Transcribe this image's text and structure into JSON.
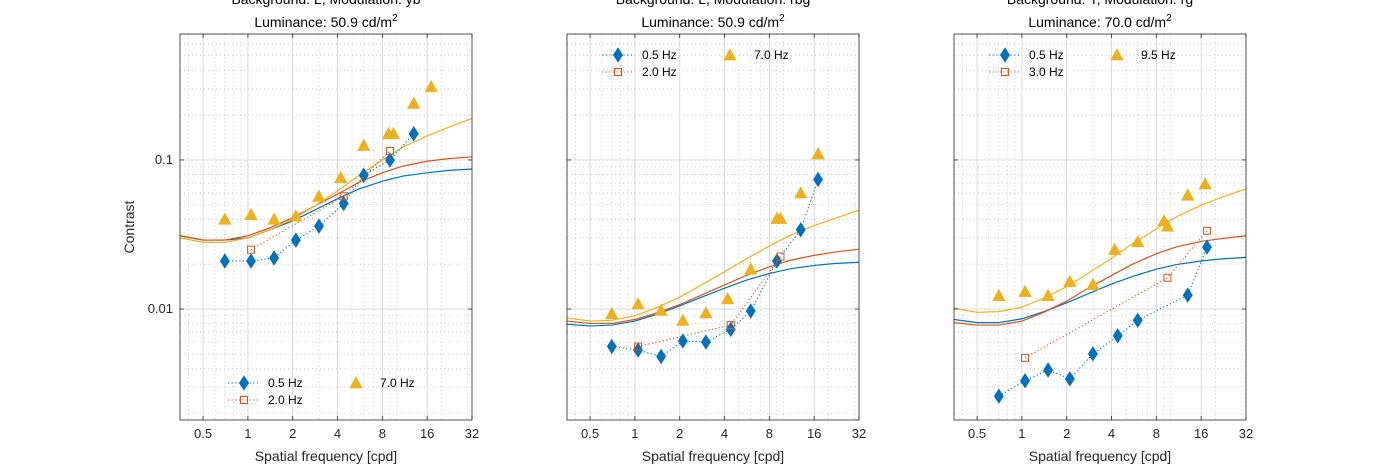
{
  "colors": {
    "series_0": "#0072BD",
    "series_1": "#D95319",
    "series_2": "#EDB120",
    "grid": "#b8b8b8",
    "axis": "#262626"
  },
  "chart_data": [
    {
      "type": "scatter",
      "title_line1": "Background: L, Modulation: yb",
      "title_line2": "Luminance: 50.9 cd/m",
      "title_superscript": "2",
      "xlabel": "Spatial frequency [cpd]",
      "ylabel": "Contrast",
      "xscale": "log",
      "yscale": "log",
      "xlim": [
        0.35,
        32
      ],
      "ylim": [
        0.0018,
        0.7
      ],
      "xticks": [
        0.5,
        1,
        2,
        4,
        8,
        16,
        32
      ],
      "xtick_labels": [
        "0.5",
        "1",
        "2",
        "4",
        "8",
        "16",
        "32"
      ],
      "yticks": [
        0.01,
        0.1
      ],
      "ytick_labels": [
        "0.01",
        "0.1"
      ],
      "grid": true,
      "legend_position": "bottom-center",
      "series": [
        {
          "name": "0.5 Hz",
          "marker": "diamond",
          "line": "dotted",
          "x": [
            0.7,
            1.05,
            1.5,
            2.1,
            3.0,
            4.4,
            6.0,
            9.0,
            13.0
          ],
          "y": [
            0.021,
            0.021,
            0.022,
            0.029,
            0.036,
            0.051,
            0.079,
            0.1,
            0.15
          ]
        },
        {
          "name": "2.0 Hz",
          "marker": "square",
          "line": "dotted",
          "x": [
            1.05,
            4.4,
            9.0
          ],
          "y": [
            0.025,
            0.057,
            0.115
          ]
        },
        {
          "name": "7.0 Hz",
          "marker": "triangle",
          "line": "none",
          "x": [
            0.7,
            1.05,
            1.5,
            2.1,
            3.0,
            4.2,
            6.0,
            8.8,
            9.5,
            13.0,
            17.0
          ],
          "y": [
            0.04,
            0.043,
            0.04,
            0.042,
            0.057,
            0.076,
            0.125,
            0.15,
            0.15,
            0.24,
            0.31
          ]
        }
      ],
      "fits": [
        {
          "x": [
            0.35,
            0.5,
            0.7,
            1,
            1.4,
            2,
            2.8,
            4,
            5.6,
            8,
            11,
            16,
            22,
            32
          ],
          "y": [
            0.031,
            0.029,
            0.029,
            0.03,
            0.034,
            0.039,
            0.046,
            0.055,
            0.064,
            0.072,
            0.078,
            0.082,
            0.085,
            0.087
          ]
        },
        {
          "x": [
            0.35,
            0.5,
            0.7,
            1,
            1.4,
            2,
            2.8,
            4,
            5.6,
            8,
            11,
            16,
            22,
            32
          ],
          "y": [
            0.031,
            0.029,
            0.029,
            0.031,
            0.035,
            0.041,
            0.049,
            0.059,
            0.071,
            0.082,
            0.091,
            0.098,
            0.102,
            0.105
          ]
        },
        {
          "x": [
            0.35,
            0.5,
            0.7,
            1,
            1.4,
            2,
            2.8,
            4,
            5.6,
            8,
            11,
            16,
            22,
            32
          ],
          "y": [
            0.03,
            0.028,
            0.028,
            0.03,
            0.034,
            0.04,
            0.049,
            0.062,
            0.079,
            0.1,
            0.122,
            0.145,
            0.165,
            0.19
          ]
        }
      ]
    },
    {
      "type": "scatter",
      "title_line1": "Background: L, Modulation: rbg",
      "title_line2": "Luminance: 50.9 cd/m",
      "title_superscript": "2",
      "xlabel": "Spatial frequency [cpd]",
      "ylabel": "",
      "xscale": "log",
      "yscale": "log",
      "xlim": [
        0.35,
        32
      ],
      "ylim": [
        0.0018,
        0.7
      ],
      "xticks": [
        0.5,
        1,
        2,
        4,
        8,
        16,
        32
      ],
      "xtick_labels": [
        "0.5",
        "1",
        "2",
        "4",
        "8",
        "16",
        "32"
      ],
      "yticks": [
        0.01,
        0.1
      ],
      "ytick_labels": [],
      "grid": true,
      "legend_position": "top-left",
      "series": [
        {
          "name": "0.5 Hz",
          "marker": "diamond",
          "line": "dotted",
          "x": [
            0.7,
            1.05,
            1.5,
            2.1,
            3.0,
            4.4,
            6.0,
            9.0,
            13.0,
            17.0
          ],
          "y": [
            0.0056,
            0.0053,
            0.0048,
            0.0061,
            0.006,
            0.0073,
            0.0097,
            0.021,
            0.034,
            0.074
          ]
        },
        {
          "name": "2.0 Hz",
          "marker": "square",
          "line": "dotted",
          "x": [
            1.05,
            4.4,
            9.5
          ],
          "y": [
            0.0056,
            0.0078,
            0.0225
          ]
        },
        {
          "name": "7.0 Hz",
          "marker": "triangle",
          "line": "none",
          "x": [
            0.7,
            1.05,
            1.5,
            2.1,
            3.0,
            4.2,
            6.0,
            9.0,
            9.5,
            13.0,
            17.0
          ],
          "y": [
            0.0093,
            0.0108,
            0.0098,
            0.0084,
            0.0094,
            0.0117,
            0.0185,
            0.0405,
            0.0405,
            0.06,
            0.11
          ]
        }
      ],
      "fits": [
        {
          "x": [
            0.35,
            0.5,
            0.7,
            1,
            1.4,
            2,
            2.8,
            4,
            5.6,
            8,
            11,
            16,
            22,
            32
          ],
          "y": [
            0.0079,
            0.0077,
            0.0078,
            0.0083,
            0.0092,
            0.0105,
            0.012,
            0.0138,
            0.0156,
            0.0173,
            0.0186,
            0.0196,
            0.0202,
            0.0206
          ]
        },
        {
          "x": [
            0.35,
            0.5,
            0.7,
            1,
            1.4,
            2,
            2.8,
            4,
            5.6,
            8,
            11,
            16,
            22,
            32
          ],
          "y": [
            0.0083,
            0.008,
            0.008,
            0.0085,
            0.0094,
            0.0107,
            0.0124,
            0.0145,
            0.0168,
            0.0192,
            0.0212,
            0.0229,
            0.0241,
            0.0252
          ]
        },
        {
          "x": [
            0.35,
            0.5,
            0.7,
            1,
            1.4,
            2,
            2.8,
            4,
            5.6,
            8,
            11,
            16,
            22,
            32
          ],
          "y": [
            0.0087,
            0.0083,
            0.0084,
            0.009,
            0.0102,
            0.012,
            0.0145,
            0.0178,
            0.0217,
            0.0265,
            0.0312,
            0.0363,
            0.0405,
            0.046
          ]
        }
      ]
    },
    {
      "type": "scatter",
      "title_line1": "Background: Y, Modulation: rg",
      "title_line2": "Luminance: 70.0 cd/m",
      "title_superscript": "2",
      "xlabel": "Spatial frequency [cpd]",
      "ylabel": "",
      "xscale": "log",
      "yscale": "log",
      "xlim": [
        0.35,
        32
      ],
      "ylim": [
        0.0018,
        0.7
      ],
      "xticks": [
        0.5,
        1,
        2,
        4,
        8,
        16,
        32
      ],
      "xtick_labels": [
        "0.5",
        "1",
        "2",
        "4",
        "8",
        "16",
        "32"
      ],
      "yticks": [
        0.01,
        0.1
      ],
      "ytick_labels": [],
      "grid": true,
      "legend_position": "top-left",
      "series": [
        {
          "name": "0.5 Hz",
          "marker": "diamond",
          "line": "dotted",
          "x": [
            0.7,
            1.05,
            1.5,
            2.1,
            3.0,
            4.4,
            6.0,
            13.0,
            17.5
          ],
          "y": [
            0.0026,
            0.0033,
            0.0039,
            0.0034,
            0.005,
            0.0066,
            0.0084,
            0.0124,
            0.026
          ]
        },
        {
          "name": "3.0 Hz",
          "marker": "square",
          "line": "dotted",
          "x": [
            1.05,
            9.5,
            17.5
          ],
          "y": [
            0.0047,
            0.0162,
            0.0335
          ]
        },
        {
          "name": "9.5 Hz",
          "marker": "triangle",
          "line": "none",
          "x": [
            0.7,
            1.05,
            1.5,
            2.1,
            3.0,
            4.2,
            6.0,
            9.0,
            9.5,
            13.0,
            17.0
          ],
          "y": [
            0.0123,
            0.0131,
            0.0123,
            0.0153,
            0.0146,
            0.0251,
            0.0283,
            0.039,
            0.036,
            0.058,
            0.069
          ]
        }
      ],
      "fits": [
        {
          "x": [
            0.35,
            0.5,
            0.7,
            1,
            1.4,
            2,
            2.8,
            4,
            5.6,
            8,
            11,
            16,
            22,
            32
          ],
          "y": [
            0.0085,
            0.0081,
            0.0081,
            0.0086,
            0.0096,
            0.011,
            0.0127,
            0.0147,
            0.0166,
            0.0185,
            0.0199,
            0.021,
            0.0217,
            0.0222
          ]
        },
        {
          "x": [
            0.35,
            0.5,
            0.7,
            1,
            1.4,
            2,
            2.8,
            4,
            5.6,
            8,
            11,
            16,
            22,
            32
          ],
          "y": [
            0.0081,
            0.0078,
            0.0078,
            0.0083,
            0.0095,
            0.0113,
            0.0138,
            0.0168,
            0.0201,
            0.0235,
            0.0262,
            0.0284,
            0.0297,
            0.031
          ]
        },
        {
          "x": [
            0.35,
            0.5,
            0.7,
            1,
            1.4,
            2,
            2.8,
            4,
            5.6,
            8,
            11,
            16,
            22,
            32
          ],
          "y": [
            0.0101,
            0.0095,
            0.0096,
            0.0103,
            0.0118,
            0.0141,
            0.0174,
            0.0219,
            0.0276,
            0.0345,
            0.0418,
            0.0497,
            0.0563,
            0.064
          ]
        }
      ]
    }
  ]
}
